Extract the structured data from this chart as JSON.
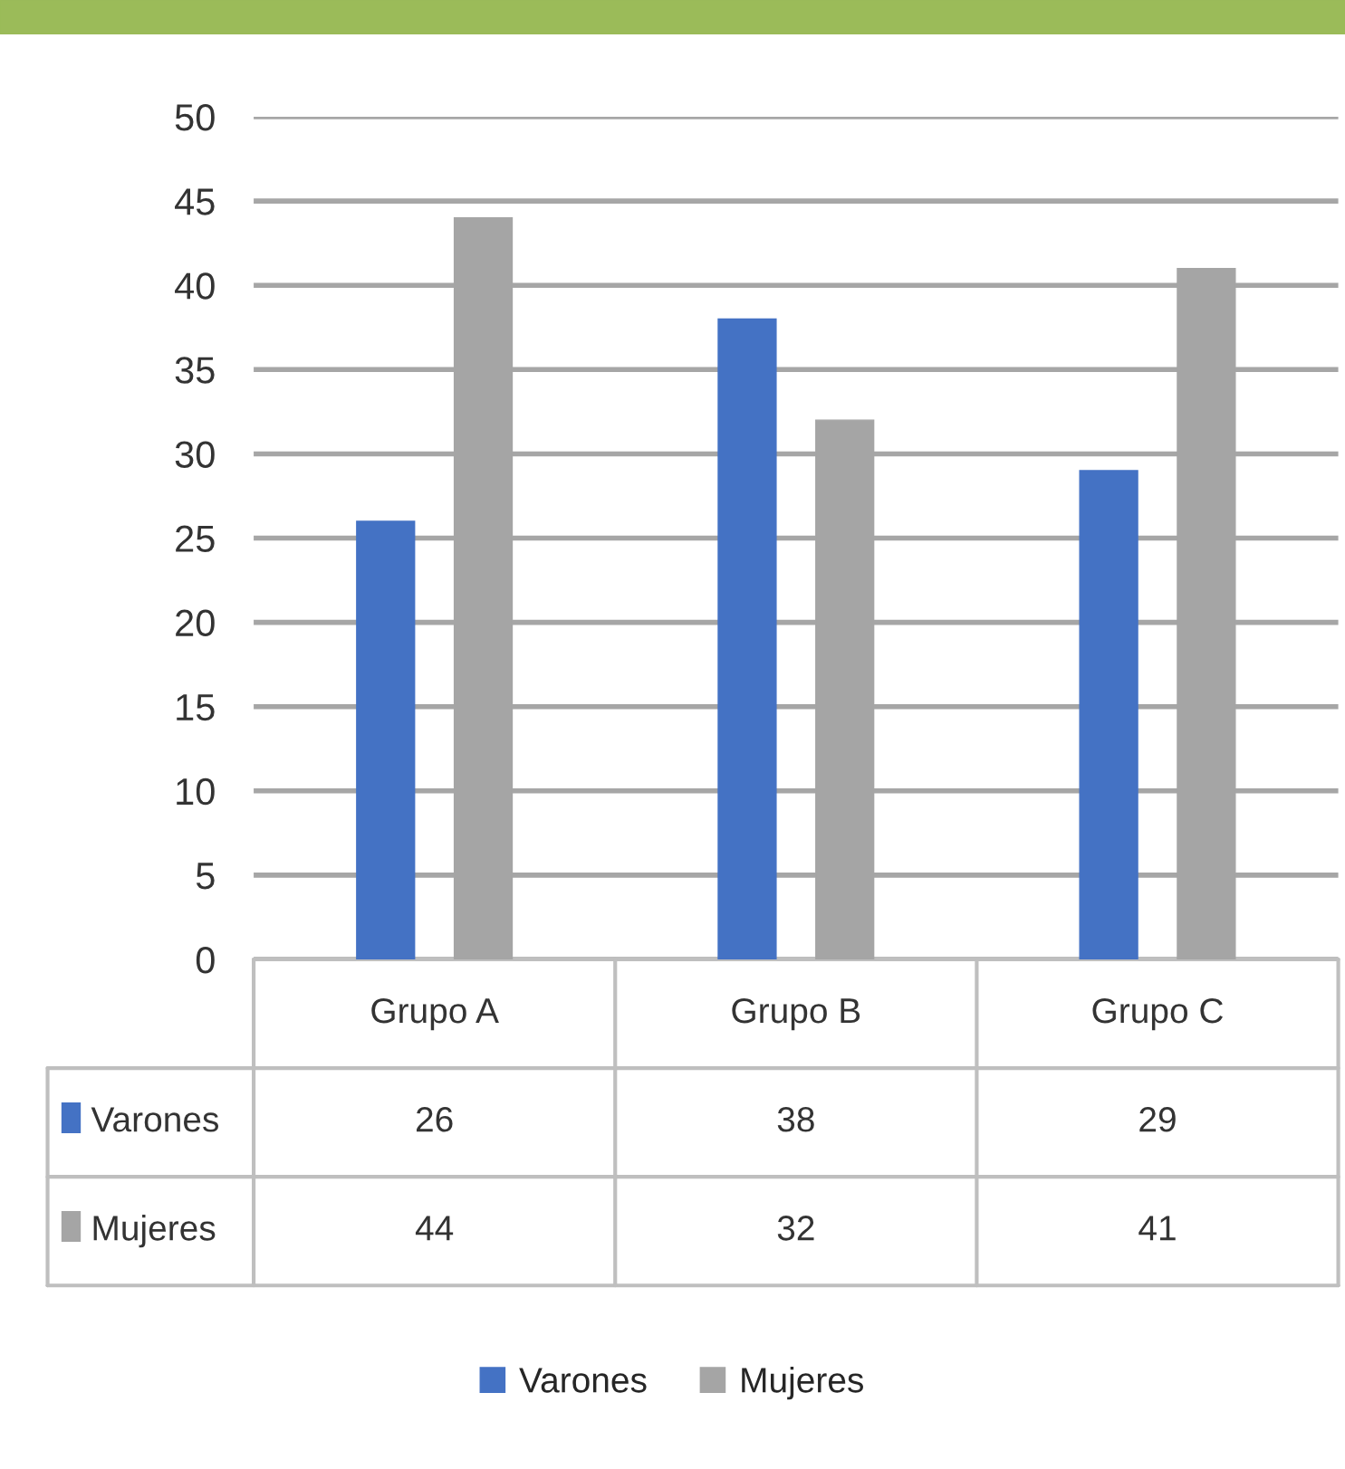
{
  "chart_data": {
    "type": "bar",
    "categories": [
      "Grupo A",
      "Grupo B",
      "Grupo C"
    ],
    "series": [
      {
        "name": "Varones",
        "color": "#4472c4",
        "values": [
          26,
          38,
          29
        ]
      },
      {
        "name": "Mujeres",
        "color": "#a5a5a5",
        "values": [
          44,
          32,
          41
        ]
      }
    ],
    "ylim": [
      0,
      50
    ],
    "yticks": [
      0,
      5,
      10,
      15,
      20,
      25,
      30,
      35,
      40,
      45,
      50
    ],
    "grid": "y",
    "legend": "bottom",
    "data_labels": true
  }
}
